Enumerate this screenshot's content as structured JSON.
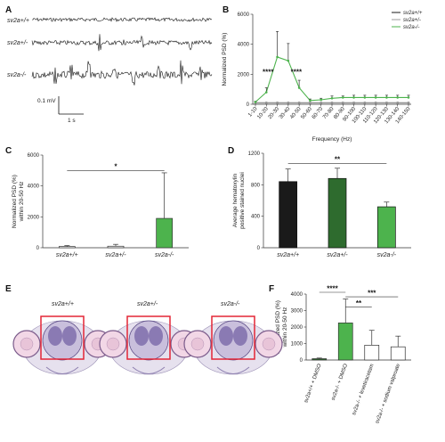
{
  "panels": {
    "A": "A",
    "B": "B",
    "C": "C",
    "D": "D",
    "E": "E",
    "F": "F"
  },
  "traces": {
    "rows": [
      "sv2a+/+",
      "sv2a+/-",
      "sv2a-/-"
    ],
    "scale_mv": "0.1 mV",
    "scale_s": "1 s"
  },
  "histology": {
    "labels": [
      "sv2a+/+",
      "sv2a+/-",
      "sv2a-/-"
    ]
  },
  "colors": {
    "wt": "#1a1a1a",
    "het": "#2e6b2e",
    "ko": "#4db34d",
    "grey": "#9a9a9a"
  },
  "chart_data": [
    {
      "panel": "B",
      "type": "line",
      "ylabel": "Normalized PSD (%)",
      "xlabel": "Frequency (Hz)",
      "ylim": [
        0,
        6000
      ],
      "yticks": [
        0,
        2000,
        4000,
        6000
      ],
      "categories": [
        "1-10",
        "10-20",
        "20-30",
        "30-40",
        "40-50",
        "50-60",
        "60-70",
        "70-80",
        "80-90",
        "90-100",
        "100-110",
        "110-120",
        "120-130",
        "130-140",
        "140-150"
      ],
      "legend": [
        "sv2a+/+",
        "sv2a+/-",
        "sv2a-/-"
      ],
      "series": [
        {
          "name": "sv2a+/+",
          "values": [
            100,
            100,
            100,
            100,
            100,
            100,
            100,
            100,
            100,
            100,
            100,
            100,
            100,
            100,
            100
          ]
        },
        {
          "name": "sv2a+/-",
          "values": [
            100,
            100,
            100,
            100,
            100,
            100,
            100,
            100,
            100,
            100,
            100,
            100,
            100,
            100,
            100
          ]
        },
        {
          "name": "sv2a-/-",
          "values": [
            150,
            800,
            3150,
            2900,
            1100,
            250,
            300,
            400,
            450,
            450,
            450,
            450,
            450,
            450,
            450
          ],
          "err": [
            50,
            300,
            1700,
            1150,
            500,
            100,
            100,
            150,
            100,
            150,
            150,
            150,
            150,
            150,
            150
          ]
        }
      ],
      "annotations": [
        "****",
        "****"
      ]
    },
    {
      "panel": "C",
      "type": "bar",
      "ylabel": "Normalized PSD (%)",
      "ylabel2": "within 20-50 Hz",
      "ylim": [
        0,
        6000
      ],
      "yticks": [
        0,
        2000,
        4000,
        6000
      ],
      "categories": [
        "sv2a+/+",
        "sv2a+/-",
        "sv2a-/-"
      ],
      "values": [
        80,
        100,
        1900
      ],
      "err": [
        60,
        120,
        2950
      ],
      "annotation": "*"
    },
    {
      "panel": "D",
      "type": "bar",
      "ylabel": "Average hematoxylin",
      "ylabel2": "positive stained nuclei",
      "ylim": [
        0,
        1200
      ],
      "yticks": [
        0,
        400,
        800,
        1200
      ],
      "categories": [
        "sv2a+/+",
        "sv2a+/-",
        "sv2a-/-"
      ],
      "values": [
        840,
        880,
        520
      ],
      "err": [
        160,
        130,
        60
      ],
      "annotation": "**"
    },
    {
      "panel": "F",
      "type": "bar",
      "ylabel": "Normalized PSD (%)",
      "ylabel2": "within 20-50 Hz",
      "ylim": [
        0,
        4000
      ],
      "yticks": [
        0,
        1000,
        2000,
        3000,
        4000
      ],
      "categories": [
        "sv2a+/+ + DMSO",
        "sv2a-/- + DMSO",
        "sv2a-/- + levetiracetam",
        "sv2a-/- + sodium valproate"
      ],
      "values": [
        80,
        2250,
        900,
        800
      ],
      "err": [
        40,
        1450,
        900,
        650
      ],
      "annotations": [
        "****",
        "**",
        "***"
      ]
    }
  ]
}
